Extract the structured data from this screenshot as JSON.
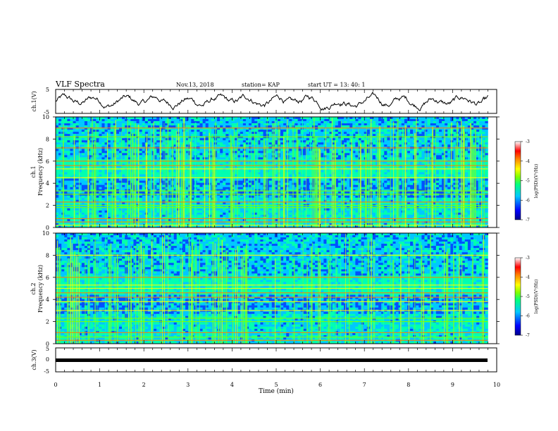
{
  "header": {
    "title": "VLF Spectra",
    "date": "Nov.13, 2018",
    "station": "station= KAP",
    "start": "start  UT =   13: 40: 1"
  },
  "chart_data": [
    {
      "type": "line",
      "panel": "ch1-waveform",
      "ylabel": "ch.1(V)",
      "ylim": [
        -5,
        5
      ],
      "yticks": [
        "5",
        "-5"
      ],
      "description_series": "noisy voltage trace roughly between -4 and 4 V across 0-9.8 min",
      "x_range_min": [
        0,
        9.8
      ]
    },
    {
      "type": "heatmap",
      "panel": "ch1-spectrogram",
      "ylabel": "Frequency (kHz)",
      "channel_label": "ch.1",
      "ylim": [
        0,
        10
      ],
      "yticks": [
        "0",
        "2",
        "4",
        "6",
        "8",
        "10"
      ],
      "x_range_min": [
        0,
        9.8
      ],
      "colorbar": {
        "label": "log(PSD)(V²/Hz)",
        "range": [
          -7,
          -3
        ],
        "ticks": [
          "-3",
          "-4",
          "-5",
          "-6",
          "-7"
        ],
        "colors": [
          "#00008b",
          "#0000ff",
          "#00c8ff",
          "#00ff80",
          "#80ff00",
          "#ffff00",
          "#ff8000",
          "#ff0000",
          "#ffffff"
        ]
      },
      "horizontal_lines_khz": [
        0.2,
        0.5,
        0.8,
        1.8,
        2.0,
        2.3,
        3.0,
        3.3,
        4.5,
        5.3,
        5.6,
        6.0,
        7.2,
        8.2,
        9.0
      ],
      "description": "bright green broadband spikes (sferics) across full range, persistent narrowband lines"
    },
    {
      "type": "heatmap",
      "panel": "ch2-spectrogram",
      "ylabel": "Frequency (kHz)",
      "channel_label": "ch.2",
      "ylim": [
        0,
        10
      ],
      "yticks": [
        "0",
        "2",
        "4",
        "6",
        "8",
        "10"
      ],
      "x_range_min": [
        0,
        9.8
      ],
      "colorbar": {
        "label": "log(PSD)(V²/Hz)",
        "range": [
          -7,
          -3
        ],
        "ticks": [
          "-3",
          "-4",
          "-5",
          "-6",
          "-7"
        ],
        "colors": [
          "#00008b",
          "#0000ff",
          "#00c8ff",
          "#00ff80",
          "#80ff00",
          "#ffff00",
          "#ff8000",
          "#ff0000",
          "#ffffff"
        ]
      },
      "horizontal_lines_khz": [
        0.3,
        0.6,
        1.0,
        2.0,
        2.3,
        3.0,
        3.8,
        4.2,
        4.6,
        5.0,
        5.3,
        6.0,
        8.0
      ],
      "description": "similar to ch.1 with weaker spikes"
    },
    {
      "type": "line",
      "panel": "ch3-waveform",
      "ylabel": "ch.3(V)",
      "ylim": [
        -5,
        5
      ],
      "yticks": [
        "5",
        "0",
        "-5"
      ],
      "series": [
        {
          "x": [
            0,
            9.8
          ],
          "y": [
            0,
            0
          ]
        }
      ],
      "x_range_min": [
        0,
        9.8
      ]
    }
  ],
  "xaxis": {
    "label": "Time (min)",
    "ticks": [
      "0",
      "1",
      "2",
      "3",
      "4",
      "5",
      "6",
      "7",
      "8",
      "9",
      "10"
    ],
    "range": [
      0,
      10
    ]
  }
}
